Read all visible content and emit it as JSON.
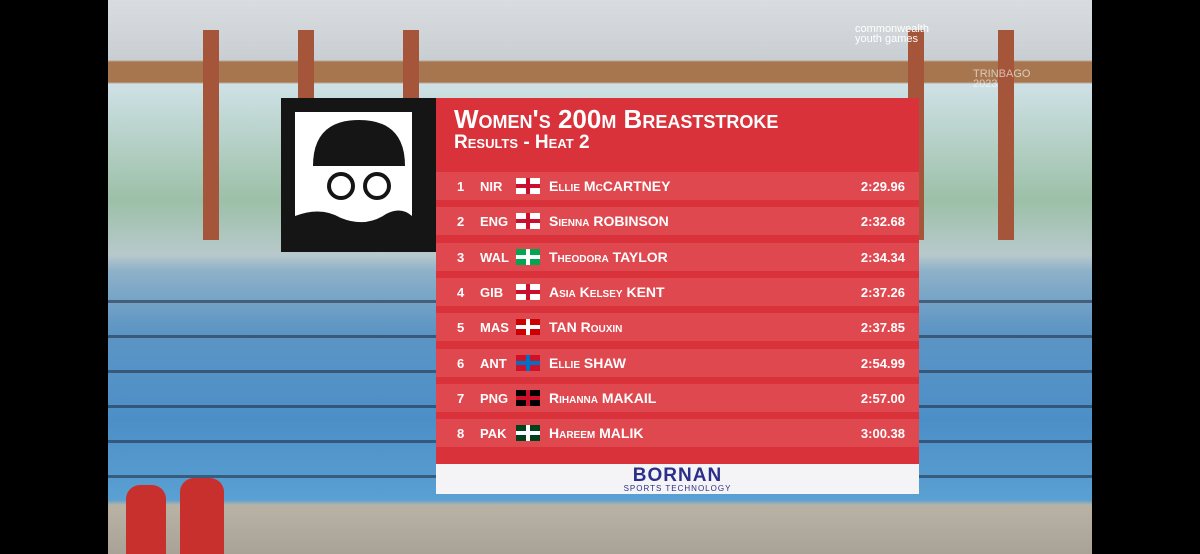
{
  "logo": {
    "line1": "commonwealth",
    "line2": "youth games",
    "line3": "TRINBAGO 2023"
  },
  "results": {
    "title": "Women's 200m Breaststroke",
    "subtitle": "Results - Heat 2",
    "rows": [
      {
        "rank": 1,
        "country": "NIR",
        "first": "Ellie",
        "last": "McCARTNEY",
        "time": "2:29.96"
      },
      {
        "rank": 2,
        "country": "ENG",
        "first": "Sienna",
        "last": "ROBINSON",
        "time": "2:32.68"
      },
      {
        "rank": 3,
        "country": "WAL",
        "first": "Theodora",
        "last": "TAYLOR",
        "time": "2:34.34"
      },
      {
        "rank": 4,
        "country": "GIB",
        "first": "Asia Kelsey",
        "last": "KENT",
        "time": "2:37.26"
      },
      {
        "rank": 5,
        "country": "MAS",
        "first": "TAN",
        "last": "Rouxin",
        "time": "2:37.85"
      },
      {
        "rank": 6,
        "country": "ANT",
        "first": "Ellie",
        "last": "SHAW",
        "time": "2:54.99"
      },
      {
        "rank": 7,
        "country": "PNG",
        "first": "Rihanna",
        "last": "MAKAIL",
        "time": "2:57.00"
      },
      {
        "rank": 8,
        "country": "PAK",
        "first": "Hareem",
        "last": "MALIK",
        "time": "3:00.38"
      }
    ]
  },
  "sponsor": {
    "name": "BORNAN",
    "tagline": "SPORTS TECHNOLOGY"
  }
}
